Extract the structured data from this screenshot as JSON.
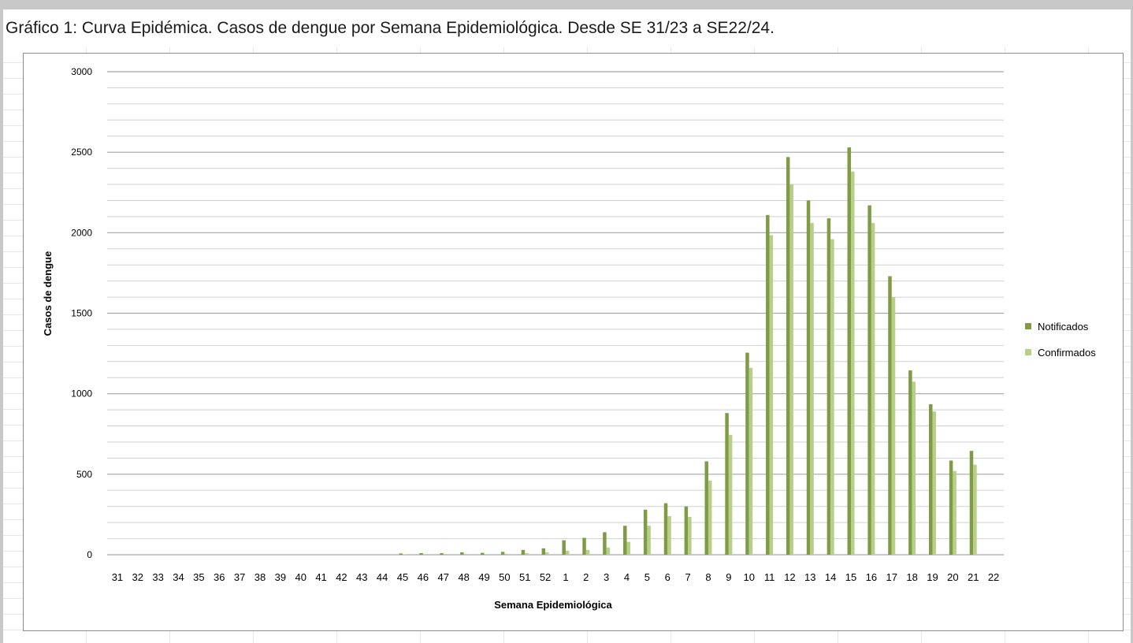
{
  "caption": "Gráfico 1: Curva Epidémica. Casos de dengue por Semana Epidemiológica. Desde SE 31/23 a SE22/24.",
  "colors": {
    "notificados": "#7f9b45",
    "confirmados": "#b8cf8a",
    "gridline": "#a6a6a6",
    "minor_gridline": "#d0d0d0"
  },
  "chart_data": {
    "type": "bar",
    "title": "",
    "xlabel": "Semana Epidemiológica",
    "ylabel": "Casos de dengue",
    "ylim": [
      0,
      3000
    ],
    "yticks": [
      0,
      500,
      1000,
      1500,
      2000,
      2500,
      3000
    ],
    "grid": true,
    "legend_position": "right",
    "categories": [
      "31",
      "32",
      "33",
      "34",
      "35",
      "36",
      "37",
      "38",
      "39",
      "40",
      "41",
      "42",
      "43",
      "44",
      "45",
      "46",
      "47",
      "48",
      "49",
      "50",
      "51",
      "52",
      "1",
      "2",
      "3",
      "4",
      "5",
      "6",
      "7",
      "8",
      "9",
      "10",
      "11",
      "12",
      "13",
      "14",
      "15",
      "16",
      "17",
      "18",
      "19",
      "20",
      "21",
      "22"
    ],
    "series": [
      {
        "name": "Notificados",
        "values": [
          0,
          0,
          0,
          0,
          0,
          0,
          0,
          0,
          0,
          0,
          0,
          0,
          0,
          0,
          8,
          10,
          10,
          15,
          12,
          18,
          30,
          40,
          90,
          105,
          140,
          180,
          280,
          320,
          300,
          580,
          880,
          1255,
          2110,
          2470,
          2200,
          2090,
          2530,
          2170,
          1730,
          1145,
          935,
          585,
          645,
          0
        ]
      },
      {
        "name": "Confirmados",
        "values": [
          0,
          0,
          0,
          0,
          0,
          0,
          0,
          0,
          0,
          0,
          0,
          0,
          0,
          0,
          3,
          4,
          4,
          5,
          4,
          6,
          10,
          15,
          25,
          30,
          45,
          80,
          180,
          240,
          235,
          460,
          745,
          1160,
          1985,
          2300,
          2060,
          1960,
          2380,
          2060,
          1600,
          1075,
          890,
          520,
          560,
          0
        ]
      }
    ]
  }
}
